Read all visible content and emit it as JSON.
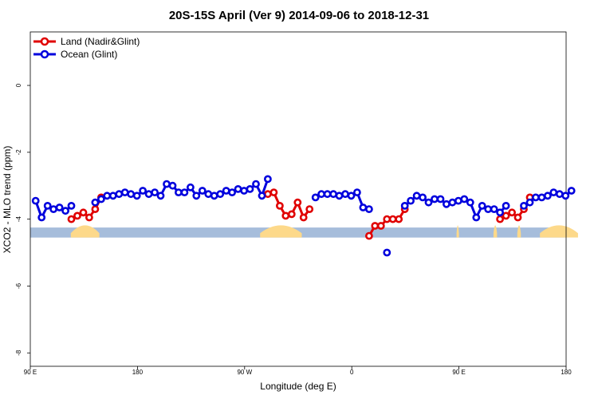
{
  "chart_data": {
    "type": "line",
    "title": "20S-15S April (Ver 9)   2014-09-06 to 2018-12-31",
    "xlabel": "Longitude (deg E)",
    "ylabel": "XCO2 - MLO trend (ppm)",
    "x_tick_labels": [
      "90 E",
      "180",
      "90 W",
      "0",
      "90 E",
      "180"
    ],
    "x_ticks": [
      90,
      180,
      270,
      360,
      450,
      540
    ],
    "y_ticks": [
      0,
      -2,
      -4,
      -6,
      -8
    ],
    "xlim": [
      90,
      540
    ],
    "ylim": [
      -8.4,
      1.6
    ],
    "grid": false,
    "legend_position": "top-left",
    "land_mask_colors": {
      "ocean": "#a6bddb",
      "land": "#fdd98a"
    },
    "land_segments_x": [
      [
        124,
        148
      ],
      [
        283,
        318
      ],
      [
        448,
        450
      ],
      [
        479,
        482
      ],
      [
        499,
        502
      ],
      [
        518,
        550
      ],
      [
        578,
        616
      ],
      [
        679,
        704
      ]
    ],
    "series": [
      {
        "name": "Land (Nadir&Glint)",
        "color": "#e00000",
        "segments": [
          [
            [
              124.5,
              -4.0
            ],
            [
              129.5,
              -3.9
            ],
            [
              134.5,
              -3.8
            ],
            [
              139.5,
              -3.95
            ],
            [
              144.5,
              -3.7
            ],
            [
              149.5,
              -3.35
            ]
          ],
          [
            [
              289.5,
              -3.25
            ],
            [
              294.5,
              -3.2
            ],
            [
              299.5,
              -3.6
            ],
            [
              304.5,
              -3.9
            ],
            [
              309.5,
              -3.85
            ],
            [
              314.5,
              -3.5
            ],
            [
              319.5,
              -3.95
            ],
            [
              324.5,
              -3.7
            ]
          ],
          [
            [
              374.5,
              -4.5
            ],
            [
              379.5,
              -4.2
            ],
            [
              384.5,
              -4.2
            ],
            [
              389.5,
              -4.0
            ],
            [
              394.5,
              -4.0
            ],
            [
              399.5,
              -4.0
            ],
            [
              404.5,
              -3.7
            ]
          ],
          [
            [
              484.5,
              -4.0
            ],
            [
              489.5,
              -3.9
            ],
            [
              494.5,
              -3.8
            ],
            [
              499.5,
              -3.95
            ],
            [
              504.5,
              -3.7
            ],
            [
              509.5,
              -3.35
            ]
          ]
        ]
      },
      {
        "name": "Ocean (Glint)",
        "color": "#0000dd",
        "segments": [
          [
            [
              94.5,
              -3.45
            ],
            [
              99.5,
              -3.95
            ],
            [
              104.5,
              -3.6
            ],
            [
              109.5,
              -3.7
            ],
            [
              114.5,
              -3.65
            ],
            [
              119.5,
              -3.75
            ],
            [
              124.5,
              -3.6
            ]
          ],
          [
            [
              144.5,
              -3.5
            ],
            [
              149.5,
              -3.4
            ],
            [
              154.5,
              -3.3
            ],
            [
              159.5,
              -3.3
            ],
            [
              164.5,
              -3.25
            ],
            [
              169.5,
              -3.2
            ],
            [
              174.5,
              -3.25
            ],
            [
              179.5,
              -3.3
            ],
            [
              184.5,
              -3.15
            ],
            [
              189.5,
              -3.25
            ],
            [
              194.5,
              -3.2
            ],
            [
              199.5,
              -3.3
            ],
            [
              204.5,
              -2.95
            ],
            [
              209.5,
              -3.0
            ],
            [
              214.5,
              -3.2
            ],
            [
              219.5,
              -3.2
            ],
            [
              224.5,
              -3.05
            ],
            [
              229.5,
              -3.3
            ],
            [
              234.5,
              -3.15
            ],
            [
              239.5,
              -3.25
            ],
            [
              244.5,
              -3.3
            ],
            [
              249.5,
              -3.25
            ],
            [
              254.5,
              -3.15
            ],
            [
              259.5,
              -3.2
            ],
            [
              264.5,
              -3.1
            ],
            [
              269.5,
              -3.15
            ],
            [
              274.5,
              -3.1
            ],
            [
              279.5,
              -2.95
            ],
            [
              284.5,
              -3.3
            ],
            [
              289.5,
              -2.8
            ]
          ],
          [
            [
              329.5,
              -3.35
            ],
            [
              334.5,
              -3.25
            ],
            [
              339.5,
              -3.25
            ],
            [
              344.5,
              -3.25
            ],
            [
              349.5,
              -3.3
            ],
            [
              354.5,
              -3.25
            ],
            [
              359.5,
              -3.3
            ],
            [
              364.5,
              -3.2
            ],
            [
              369.5,
              -3.65
            ],
            [
              374.5,
              -3.7
            ]
          ],
          [
            [
              389.5,
              -5.0
            ]
          ],
          [
            [
              404.5,
              -3.6
            ],
            [
              409.5,
              -3.45
            ],
            [
              414.5,
              -3.3
            ],
            [
              419.5,
              -3.35
            ],
            [
              424.5,
              -3.5
            ],
            [
              429.5,
              -3.4
            ],
            [
              434.5,
              -3.4
            ],
            [
              439.5,
              -3.55
            ],
            [
              444.5,
              -3.5
            ],
            [
              449.5,
              -3.45
            ],
            [
              454.5,
              -3.4
            ],
            [
              459.5,
              -3.5
            ],
            [
              464.5,
              -3.95
            ],
            [
              469.5,
              -3.6
            ],
            [
              474.5,
              -3.7
            ],
            [
              479.5,
              -3.7
            ],
            [
              484.5,
              -3.8
            ],
            [
              489.5,
              -3.6
            ]
          ],
          [
            [
              504.5,
              -3.6
            ],
            [
              509.5,
              -3.5
            ],
            [
              514.5,
              -3.35
            ],
            [
              519.5,
              -3.35
            ],
            [
              524.5,
              -3.3
            ],
            [
              529.5,
              -3.2
            ],
            [
              534.5,
              -3.25
            ],
            [
              539.5,
              -3.3
            ],
            [
              544.5,
              -3.15
            ]
          ]
        ]
      }
    ]
  }
}
